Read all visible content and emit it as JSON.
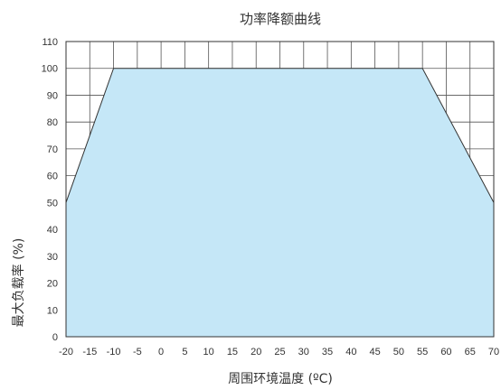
{
  "chart_data": {
    "type": "area",
    "title": "功率降额曲线",
    "xlabel": "周围环境温度 (ºC)",
    "ylabel": "最大负载率 (%)",
    "x_ticks": [
      -20,
      -15,
      -10,
      -5,
      0,
      5,
      10,
      15,
      20,
      25,
      30,
      35,
      40,
      45,
      50,
      55,
      60,
      65,
      70
    ],
    "y_ticks": [
      0,
      10,
      20,
      30,
      40,
      50,
      60,
      70,
      80,
      90,
      100,
      110
    ],
    "xlim": [
      -20,
      70
    ],
    "ylim": [
      0,
      110
    ],
    "grid": true,
    "series": [
      {
        "x": [
          -20,
          -10,
          55,
          70
        ],
        "y": [
          50,
          100,
          100,
          50
        ]
      }
    ],
    "fill_color": "#c5e7f7",
    "line_color": "#333333",
    "grid_color": "#555555"
  }
}
